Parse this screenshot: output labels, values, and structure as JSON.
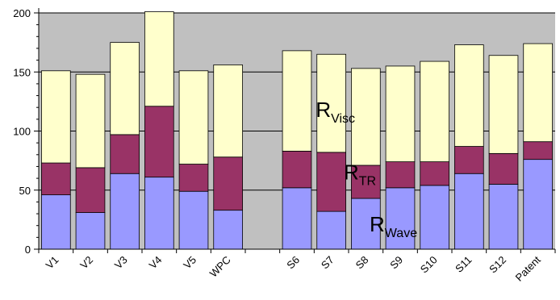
{
  "chart_data": {
    "type": "bar",
    "stacked": true,
    "categories": [
      "V1",
      "V2",
      "V3",
      "V4",
      "V5",
      "WPC",
      "",
      "S6",
      "S7",
      "S8",
      "S9",
      "S10",
      "S11",
      "S12",
      "Patent"
    ],
    "series": [
      {
        "name": "R",
        "name_sub": "Wave",
        "color": "#9999ff",
        "values": [
          46,
          31,
          64,
          61,
          49,
          33,
          null,
          52,
          32,
          43,
          52,
          54,
          64,
          55,
          76
        ]
      },
      {
        "name": "R",
        "name_sub": "TR",
        "color": "#993366",
        "values": [
          27,
          38,
          33,
          60,
          23,
          45,
          null,
          31,
          50,
          28,
          22,
          20,
          23,
          26,
          15
        ]
      },
      {
        "name": "R",
        "name_sub": "Visc",
        "color": "#ffffcc",
        "values": [
          78,
          79,
          78,
          80,
          79,
          78,
          null,
          85,
          83,
          82,
          81,
          85,
          86,
          83,
          83
        ]
      }
    ],
    "ylim": [
      0,
      200
    ],
    "yticks": [
      0,
      50,
      100,
      150,
      200
    ],
    "grid": true,
    "plot_background": "#c0c0c0",
    "x_label_rotation": -45
  }
}
